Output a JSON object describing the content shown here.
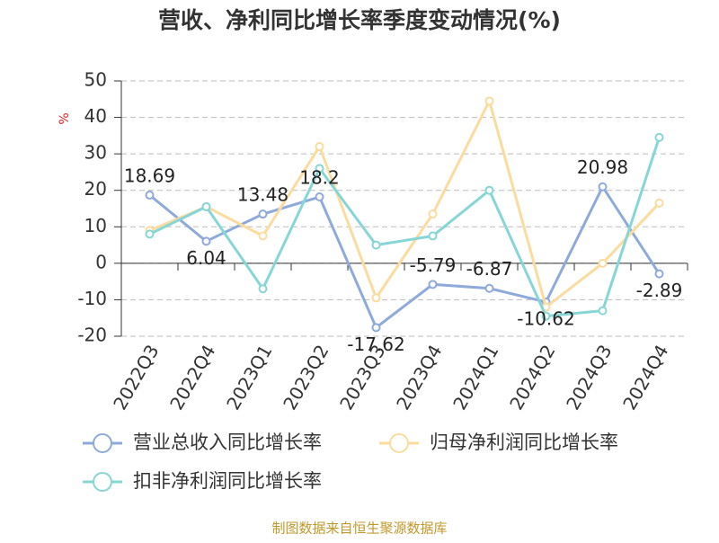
{
  "chart_data": {
    "type": "line",
    "title": "营收、净利同比增长率季度变动情况(%)",
    "y_label": "%",
    "source": "制图数据来自恒生聚源数据库",
    "categories": [
      "2022Q3",
      "2022Q4",
      "2023Q1",
      "2023Q2",
      "2023Q3",
      "2023Q4",
      "2024Q1",
      "2024Q2",
      "2024Q3",
      "2024Q4"
    ],
    "series": [
      {
        "name": "营业总收入同比增长率",
        "color": "#8eaadb",
        "values": [
          18.69,
          6.04,
          13.48,
          18.2,
          -17.62,
          -5.79,
          -6.87,
          -10.62,
          20.98,
          -2.89
        ],
        "show_labels": true
      },
      {
        "name": "归母净利润同比增长率",
        "color": "#fbdb9e",
        "values": [
          9,
          15.5,
          7.5,
          32,
          -9.5,
          13.5,
          44.5,
          -12,
          0,
          16.5
        ]
      },
      {
        "name": "扣非净利润同比增长率",
        "color": "#86d6d6",
        "values": [
          8,
          15.5,
          -7,
          26,
          5,
          7.5,
          20,
          -14.5,
          -13,
          34.5
        ]
      }
    ],
    "ylim": [
      -20,
      50
    ],
    "yticks": [
      -20,
      -10,
      0,
      10,
      20,
      30,
      40,
      50
    ],
    "grid": true
  }
}
